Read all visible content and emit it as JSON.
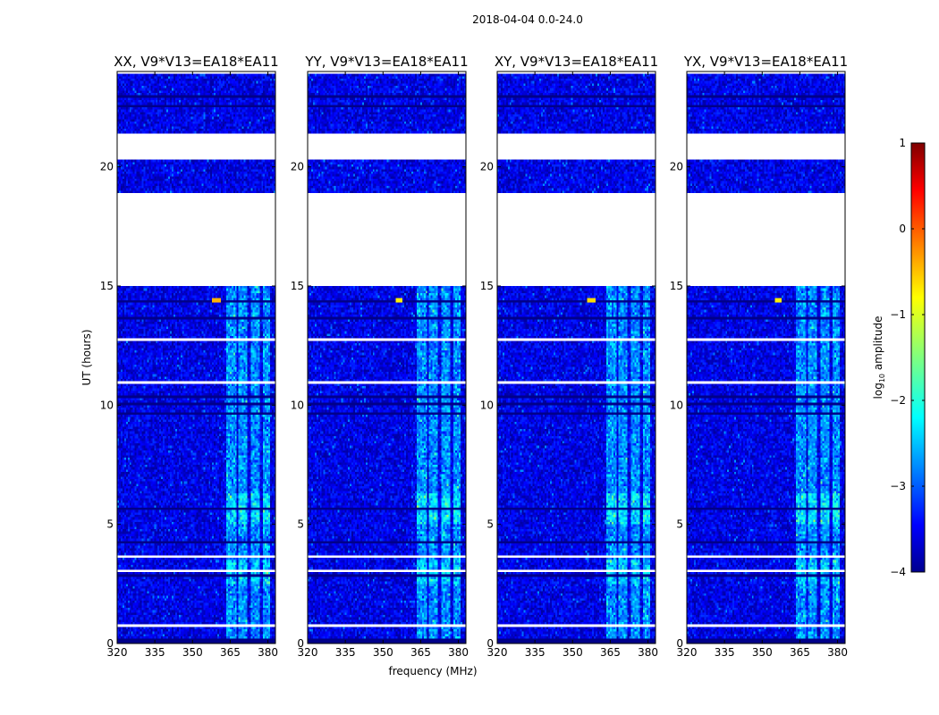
{
  "figure": {
    "suptitle": "2018-04-04 0.0-24.0",
    "ylabel": "UT (hours)",
    "xlabel": "frequency (MHz)"
  },
  "colorbar": {
    "label_prefix": "log",
    "label_sub": "10",
    "label_suffix": " amplitude",
    "ticks": [
      "1",
      "0",
      "−1",
      "−2",
      "−3",
      "−4"
    ],
    "range": [
      -4,
      1
    ],
    "colormap": "jet"
  },
  "chart_data": [
    {
      "type": "heatmap",
      "title": "XX, V9*V13=EA18*EA11",
      "xlabel": "frequency (MHz)",
      "ylabel": "UT (hours)",
      "xlim": [
        320,
        383
      ],
      "ylim": [
        0,
        24
      ],
      "xticks": [
        320,
        335,
        350,
        365,
        380
      ],
      "yticks": [
        0,
        5,
        10,
        15,
        20
      ],
      "zlabel": "log10 amplitude",
      "zlim": [
        -4,
        1
      ],
      "peak": {
        "freq_mhz": 359.5,
        "ut_hours": 14.4,
        "log10_amplitude": -0.5
      },
      "rfi_band_mhz": [
        [
          363.5,
          367.5
        ],
        [
          368,
          372
        ],
        [
          373,
          377
        ],
        [
          378,
          381
        ]
      ],
      "data_gaps_ut": [
        [
          15.0,
          18.9
        ],
        [
          20.3,
          20.6
        ],
        [
          20.6,
          21.4
        ]
      ]
    },
    {
      "type": "heatmap",
      "title": "YY, V9*V13=EA18*EA11",
      "xlabel": "frequency (MHz)",
      "ylabel": "UT (hours)",
      "xlim": [
        320,
        383
      ],
      "ylim": [
        0,
        24
      ],
      "xticks": [
        320,
        335,
        350,
        365,
        380
      ],
      "yticks": [
        0,
        5,
        10,
        15,
        20
      ],
      "zlabel": "log10 amplitude",
      "zlim": [
        -4,
        1
      ],
      "peak": {
        "freq_mhz": 356.5,
        "ut_hours": 14.4,
        "log10_amplitude": -0.8
      },
      "rfi_band_mhz": [
        [
          363.5,
          367.5
        ],
        [
          368,
          372
        ],
        [
          373,
          377
        ],
        [
          378,
          381
        ]
      ],
      "data_gaps_ut": [
        [
          15.0,
          18.9
        ],
        [
          20.3,
          20.6
        ],
        [
          20.6,
          21.4
        ]
      ]
    },
    {
      "type": "heatmap",
      "title": "XY, V9*V13=EA18*EA11",
      "xlabel": "frequency (MHz)",
      "ylabel": "UT (hours)",
      "xlim": [
        320,
        383
      ],
      "ylim": [
        0,
        24
      ],
      "xticks": [
        320,
        335,
        350,
        365,
        380
      ],
      "yticks": [
        0,
        5,
        10,
        15,
        20
      ],
      "zlabel": "log10 amplitude",
      "zlim": [
        -4,
        1
      ],
      "peak": {
        "freq_mhz": 357.5,
        "ut_hours": 14.4,
        "log10_amplitude": -0.7
      },
      "rfi_band_mhz": [
        [
          363.5,
          367.5
        ],
        [
          368,
          372
        ],
        [
          373,
          377
        ],
        [
          378,
          381
        ]
      ],
      "data_gaps_ut": [
        [
          15.0,
          18.9
        ],
        [
          20.3,
          20.6
        ],
        [
          20.6,
          21.4
        ]
      ]
    },
    {
      "type": "heatmap",
      "title": "YX, V9*V13=EA18*EA11",
      "xlabel": "frequency (MHz)",
      "ylabel": "UT (hours)",
      "xlim": [
        320,
        383
      ],
      "ylim": [
        0,
        24
      ],
      "xticks": [
        320,
        335,
        350,
        365,
        380
      ],
      "yticks": [
        0,
        5,
        10,
        15,
        20
      ],
      "zlabel": "log10 amplitude",
      "zlim": [
        -4,
        1
      ],
      "peak": {
        "freq_mhz": 356.5,
        "ut_hours": 14.4,
        "log10_amplitude": -0.8
      },
      "rfi_band_mhz": [
        [
          363.5,
          367.5
        ],
        [
          368,
          372
        ],
        [
          373,
          377
        ],
        [
          378,
          381
        ]
      ],
      "data_gaps_ut": [
        [
          15.0,
          18.9
        ],
        [
          20.3,
          20.6
        ],
        [
          20.6,
          21.4
        ]
      ]
    }
  ]
}
